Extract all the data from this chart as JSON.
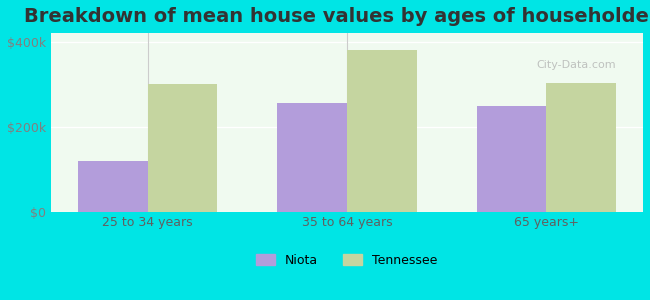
{
  "title": "Breakdown of mean house values by ages of householders",
  "categories": [
    "25 to 34 years",
    "35 to 64 years",
    "65 years+"
  ],
  "niota_values": [
    120000,
    255000,
    248000
  ],
  "tennessee_values": [
    300000,
    380000,
    303000
  ],
  "ylim": [
    0,
    420000
  ],
  "yticks": [
    0,
    200000,
    400000
  ],
  "ytick_labels": [
    "$0",
    "$200k",
    "$400k"
  ],
  "niota_color": "#b39ddb",
  "tennessee_color": "#c5d5a0",
  "background_color": "#00e5e5",
  "plot_bg_color": "#f0faf0",
  "title_fontsize": 14,
  "legend_labels": [
    "Niota",
    "Tennessee"
  ],
  "bar_width": 0.35
}
